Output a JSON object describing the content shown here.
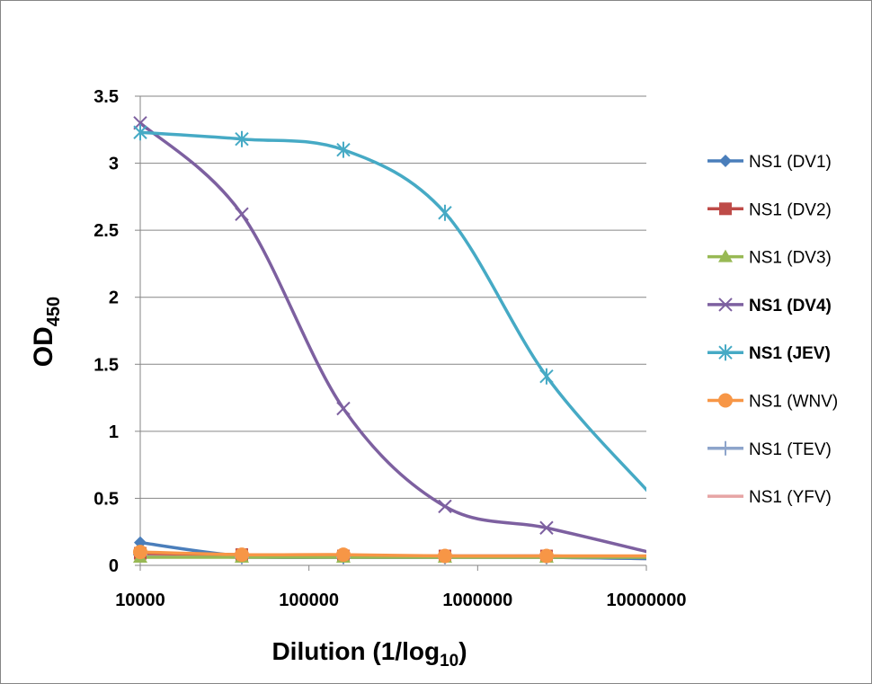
{
  "chart_data": {
    "type": "line",
    "title": "",
    "xlabel": {
      "main": "Dilution (1/log",
      "sub": "10",
      "end": ")"
    },
    "ylabel": {
      "main": "OD",
      "sub": "450"
    },
    "x_scale": "log",
    "xlim": [
      10000,
      10000000
    ],
    "ylim": [
      0,
      3.5
    ],
    "x_ticks": [
      10000,
      100000,
      1000000,
      10000000
    ],
    "x_tick_labels": [
      "10000",
      "100000",
      "1000000",
      "10000000"
    ],
    "y_ticks": [
      0,
      0.5,
      1,
      1.5,
      2,
      2.5,
      3,
      3.5
    ],
    "y_tick_labels": [
      "0",
      "0.5",
      "1",
      "1.5",
      "2",
      "2.5",
      "3",
      "3.5"
    ],
    "grid": "horizontal",
    "legend_position": "right",
    "x": [
      10000,
      40000,
      160000,
      640000,
      2560000,
      10240000
    ],
    "series": [
      {
        "name": "NS1 (DV1)",
        "color": "#4a7ebb",
        "marker": "diamond",
        "bold": false,
        "values": [
          0.17,
          0.07,
          0.06,
          0.06,
          0.06,
          0.05
        ]
      },
      {
        "name": "NS1 (DV2)",
        "color": "#be4b48",
        "marker": "square",
        "bold": false,
        "values": [
          0.09,
          0.08,
          0.07,
          0.07,
          0.07,
          0.06
        ]
      },
      {
        "name": "NS1 (DV3)",
        "color": "#98b954",
        "marker": "triangle",
        "bold": false,
        "values": [
          0.06,
          0.06,
          0.06,
          0.06,
          0.06,
          0.06
        ]
      },
      {
        "name": "NS1 (DV4)",
        "color": "#7d60a0",
        "marker": "x",
        "bold": true,
        "values": [
          3.3,
          2.62,
          1.17,
          0.44,
          0.28,
          0.1
        ]
      },
      {
        "name": "NS1 (JEV)",
        "color": "#46aac5",
        "marker": "star",
        "bold": true,
        "values": [
          3.23,
          3.18,
          3.1,
          2.63,
          1.41,
          0.55
        ]
      },
      {
        "name": "NS1 (WNV)",
        "color": "#f79646",
        "marker": "circle",
        "bold": false,
        "values": [
          0.1,
          0.08,
          0.08,
          0.07,
          0.07,
          0.07
        ]
      },
      {
        "name": "NS1 (TEV)",
        "color": "#8ea5cb",
        "marker": "plus",
        "bold": false,
        "values": [
          0.08,
          0.06,
          0.06,
          0.06,
          0.06,
          0.05
        ]
      },
      {
        "name": "NS1 (YFV)",
        "color": "#e6a4a4",
        "marker": "none",
        "bold": false,
        "values": [
          0.09,
          0.07,
          0.06,
          0.06,
          0.06,
          0.05
        ]
      }
    ]
  }
}
